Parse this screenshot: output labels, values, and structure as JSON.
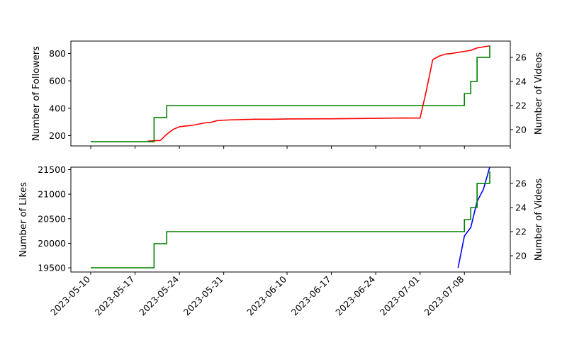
{
  "chart_data": [
    {
      "type": "line",
      "title": "",
      "xlabel": "",
      "ylabel": "Number of Followers",
      "y2label": "Number of Videos",
      "ylim": [
        125,
        890
      ],
      "y2lim": [
        18.65,
        27.35
      ],
      "yticks": [
        200,
        400,
        600,
        800
      ],
      "y2ticks": [
        20,
        22,
        24,
        26
      ],
      "grid": false,
      "series": [
        {
          "axis": "left",
          "color": "#ff0000",
          "points": [
            [
              "2023-05-19",
              160
            ],
            [
              "2023-05-21",
              165
            ],
            [
              "2023-05-22",
              210
            ],
            [
              "2023-05-23",
              245
            ],
            [
              "2023-05-24",
              265
            ],
            [
              "2023-05-26",
              275
            ],
            [
              "2023-05-28",
              293
            ],
            [
              "2023-05-29",
              297
            ],
            [
              "2023-05-30",
              310
            ],
            [
              "2023-06-01",
              315
            ],
            [
              "2023-06-05",
              320
            ],
            [
              "2023-06-08",
              320
            ],
            [
              "2023-06-10",
              322
            ],
            [
              "2023-06-17",
              323
            ],
            [
              "2023-06-24",
              326
            ],
            [
              "2023-06-28",
              329
            ],
            [
              "2023-07-01",
              328
            ],
            [
              "2023-07-02",
              530
            ],
            [
              "2023-07-03",
              755
            ],
            [
              "2023-07-04",
              780
            ],
            [
              "2023-07-05",
              795
            ],
            [
              "2023-07-06",
              800
            ],
            [
              "2023-07-08",
              815
            ],
            [
              "2023-07-09",
              822
            ],
            [
              "2023-07-10",
              840
            ],
            [
              "2023-07-11",
              848
            ],
            [
              "2023-07-12",
              855
            ]
          ]
        },
        {
          "axis": "right",
          "color": "#008000",
          "step": true,
          "points": [
            [
              "2023-05-10",
              19
            ],
            [
              "2023-05-20",
              19
            ],
            [
              "2023-05-20",
              21
            ],
            [
              "2023-05-22",
              21
            ],
            [
              "2023-05-22",
              22
            ],
            [
              "2023-07-08",
              22
            ],
            [
              "2023-07-08",
              23
            ],
            [
              "2023-07-09",
              23
            ],
            [
              "2023-07-09",
              24
            ],
            [
              "2023-07-10",
              24
            ],
            [
              "2023-07-10",
              26
            ],
            [
              "2023-07-12",
              26
            ],
            [
              "2023-07-12",
              27
            ]
          ]
        }
      ]
    },
    {
      "type": "line",
      "title": "",
      "xlabel": "",
      "ylabel": "Number of Likes",
      "y2label": "Number of Videos",
      "ylim": [
        19415,
        21550
      ],
      "y2lim": [
        18.65,
        27.35
      ],
      "yticks": [
        19500,
        20000,
        20500,
        21000,
        21500
      ],
      "y2ticks": [
        20,
        22,
        24,
        26
      ],
      "grid": false,
      "series": [
        {
          "axis": "left",
          "color": "#0000ff",
          "points": [
            [
              "2023-07-07",
              19500
            ],
            [
              "2023-07-08",
              20150
            ],
            [
              "2023-07-09",
              20320
            ],
            [
              "2023-07-10",
              20850
            ],
            [
              "2023-07-11",
              21100
            ],
            [
              "2023-07-12",
              21550
            ]
          ]
        },
        {
          "axis": "right",
          "color": "#008000",
          "step": true,
          "points": [
            [
              "2023-05-10",
              19
            ],
            [
              "2023-05-20",
              19
            ],
            [
              "2023-05-20",
              21
            ],
            [
              "2023-05-22",
              21
            ],
            [
              "2023-05-22",
              22
            ],
            [
              "2023-07-08",
              22
            ],
            [
              "2023-07-08",
              23
            ],
            [
              "2023-07-09",
              23
            ],
            [
              "2023-07-09",
              24
            ],
            [
              "2023-07-10",
              24
            ],
            [
              "2023-07-10",
              26
            ],
            [
              "2023-07-12",
              26
            ],
            [
              "2023-07-12",
              27
            ]
          ]
        }
      ]
    }
  ],
  "xaxis": {
    "xlim": [
      "2023-05-10",
      "2023-07-12"
    ],
    "tick_labels": [
      "2023-05-10",
      "2023-05-17",
      "2023-05-24",
      "2023-05-31",
      "2023-06-10",
      "2023-06-17",
      "2023-06-24",
      "2023-07-01",
      "2023-07-08"
    ]
  }
}
